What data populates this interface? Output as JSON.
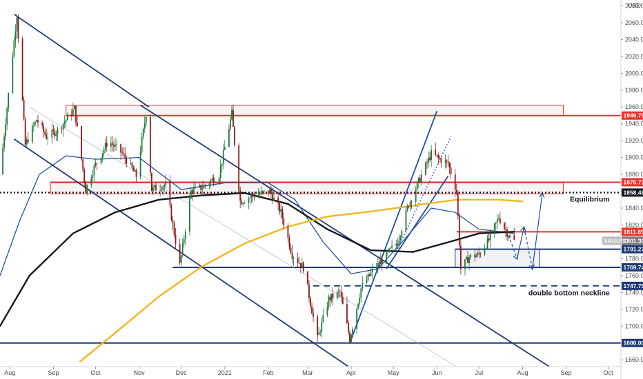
{
  "chart_data": {
    "type": "candlestick",
    "symbol": "XAUUSD",
    "currency": "USD",
    "y_range": [
      1652,
      2082
    ],
    "y_ticks": [
      1660,
      1680,
      1700,
      1720,
      1740,
      1760,
      1780,
      1800,
      1820,
      1840,
      1860,
      1880,
      1900,
      1920,
      1940,
      1960,
      1980,
      2000,
      2020,
      2040,
      2060,
      2080
    ],
    "x_range": [
      "2020-07-25",
      "2021-10-10"
    ],
    "x_ticks": [
      {
        "label": "Aug",
        "date": "2020-08-01"
      },
      {
        "label": "Sep",
        "date": "2020-09-01"
      },
      {
        "label": "Oct",
        "date": "2020-10-01"
      },
      {
        "label": "Nov",
        "date": "2020-11-01"
      },
      {
        "label": "Dec",
        "date": "2020-12-01"
      },
      {
        "label": "2021",
        "date": "2021-01-01"
      },
      {
        "label": "Feb",
        "date": "2021-02-01"
      },
      {
        "label": "Mar",
        "date": "2021-03-01"
      },
      {
        "label": "Apr",
        "date": "2021-04-01"
      },
      {
        "label": "May",
        "date": "2021-05-01"
      },
      {
        "label": "Jun",
        "date": "2021-06-01"
      },
      {
        "label": "Jul",
        "date": "2021-07-01"
      },
      {
        "label": "Aug",
        "date": "2021-08-01"
      },
      {
        "label": "Sep",
        "date": "2021-09-01"
      },
      {
        "label": "Oct",
        "date": "2021-10-01"
      }
    ],
    "close_path": [
      [
        "2020-07-25",
        1880
      ],
      [
        "2020-07-31",
        1975
      ],
      [
        "2020-08-06",
        2070
      ],
      [
        "2020-08-12",
        1915
      ],
      [
        "2020-08-20",
        1945
      ],
      [
        "2020-08-27",
        1925
      ],
      [
        "2020-09-04",
        1932
      ],
      [
        "2020-09-16",
        1958
      ],
      [
        "2020-09-24",
        1862
      ],
      [
        "2020-09-30",
        1888
      ],
      [
        "2020-10-10",
        1920
      ],
      [
        "2020-10-20",
        1905
      ],
      [
        "2020-10-30",
        1878
      ],
      [
        "2020-11-06",
        1952
      ],
      [
        "2020-11-10",
        1862
      ],
      [
        "2020-11-20",
        1868
      ],
      [
        "2020-11-30",
        1772
      ],
      [
        "2020-12-08",
        1860
      ],
      [
        "2020-12-16",
        1865
      ],
      [
        "2020-12-28",
        1880
      ],
      [
        "2021-01-06",
        1952
      ],
      [
        "2021-01-12",
        1848
      ],
      [
        "2021-01-22",
        1855
      ],
      [
        "2021-02-02",
        1860
      ],
      [
        "2021-02-10",
        1835
      ],
      [
        "2021-02-18",
        1785
      ],
      [
        "2021-02-26",
        1770
      ],
      [
        "2021-03-08",
        1685
      ],
      [
        "2021-03-16",
        1732
      ],
      [
        "2021-03-24",
        1740
      ],
      [
        "2021-03-31",
        1685
      ],
      [
        "2021-04-08",
        1745
      ],
      [
        "2021-04-16",
        1765
      ],
      [
        "2021-04-24",
        1780
      ],
      [
        "2021-05-04",
        1800
      ],
      [
        "2021-05-12",
        1845
      ],
      [
        "2021-05-20",
        1875
      ],
      [
        "2021-05-28",
        1905
      ],
      [
        "2021-06-03",
        1898
      ],
      [
        "2021-06-09",
        1893
      ],
      [
        "2021-06-15",
        1860
      ],
      [
        "2021-06-18",
        1768
      ],
      [
        "2021-06-24",
        1782
      ],
      [
        "2021-07-01",
        1785
      ],
      [
        "2021-07-08",
        1802
      ],
      [
        "2021-07-15",
        1829
      ],
      [
        "2021-07-22",
        1808
      ],
      [
        "2021-07-26",
        1801
      ]
    ],
    "moving_averages": [
      {
        "role": "blue",
        "color": "#1f4fa3",
        "points": [
          [
            "2020-07-25",
            1760
          ],
          [
            "2020-08-08",
            1825
          ],
          [
            "2020-08-22",
            1880
          ],
          [
            "2020-09-10",
            1902
          ],
          [
            "2020-10-01",
            1898
          ],
          [
            "2020-11-01",
            1900
          ],
          [
            "2020-12-01",
            1862
          ],
          [
            "2021-01-01",
            1870
          ],
          [
            "2021-02-01",
            1870
          ],
          [
            "2021-02-20",
            1850
          ],
          [
            "2021-03-12",
            1800
          ],
          [
            "2021-04-01",
            1762
          ],
          [
            "2021-04-20",
            1768
          ],
          [
            "2021-05-10",
            1805
          ],
          [
            "2021-05-28",
            1840
          ],
          [
            "2021-06-14",
            1835
          ],
          [
            "2021-07-01",
            1815
          ],
          [
            "2021-07-26",
            1810
          ]
        ]
      },
      {
        "role": "black",
        "color": "#131722",
        "points": [
          [
            "2020-07-25",
            1700
          ],
          [
            "2020-08-15",
            1760
          ],
          [
            "2020-09-15",
            1810
          ],
          [
            "2020-10-15",
            1835
          ],
          [
            "2020-11-15",
            1850
          ],
          [
            "2020-12-15",
            1855
          ],
          [
            "2021-01-15",
            1858
          ],
          [
            "2021-02-15",
            1845
          ],
          [
            "2021-03-15",
            1815
          ],
          [
            "2021-04-15",
            1790
          ],
          [
            "2021-05-15",
            1788
          ],
          [
            "2021-06-10",
            1800
          ],
          [
            "2021-07-01",
            1810
          ],
          [
            "2021-07-26",
            1812
          ]
        ]
      },
      {
        "role": "orange",
        "color": "#f2b51f",
        "points": [
          [
            "2020-09-20",
            1658
          ],
          [
            "2020-10-15",
            1692
          ],
          [
            "2020-11-15",
            1735
          ],
          [
            "2020-12-15",
            1770
          ],
          [
            "2021-01-15",
            1798
          ],
          [
            "2021-02-15",
            1818
          ],
          [
            "2021-03-15",
            1830
          ],
          [
            "2021-04-15",
            1836
          ],
          [
            "2021-05-15",
            1843
          ],
          [
            "2021-06-15",
            1850
          ],
          [
            "2021-07-15",
            1850
          ],
          [
            "2021-08-01",
            1848
          ]
        ]
      }
    ],
    "channels": [
      {
        "color": "#1c3a73",
        "upper": [
          [
            "2020-08-05",
            2067
          ],
          [
            "2021-03-20",
            1660
          ]
        ],
        "lower": [
          [
            "2020-08-05",
            1922
          ],
          [
            "2021-03-20",
            1660
          ]
        ],
        "lower_ext": [
          [
            "2020-07-28",
            1892
          ],
          [
            "2021-03-15",
            1652
          ]
        ],
        "upper_ext": [
          [
            "2020-07-28",
            2070
          ],
          [
            "2021-08-20",
            1652
          ]
        ]
      },
      {
        "color": "#1f4fa3",
        "upper": [
          [
            "2021-05-18",
            1912
          ],
          [
            "2021-06-01",
            1956
          ]
        ],
        "lower": [
          [
            "2021-03-31",
            1680
          ],
          [
            "2021-06-06",
            1878
          ]
        ]
      }
    ],
    "lines": [
      {
        "points": [
          [
            "2020-08-04",
            2070
          ],
          [
            "2020-11-08",
            1960
          ]
        ],
        "color": "#1c3a73"
      },
      {
        "points": [
          [
            "2020-08-04",
            1922
          ],
          [
            "2021-03-30",
            1652
          ]
        ],
        "color": "#1c3a73"
      },
      {
        "points": [
          [
            "2020-11-02",
            1962
          ],
          [
            "2021-08-20",
            1652
          ]
        ],
        "color": "#1c3a73"
      },
      {
        "points": [
          [
            "2021-03-31",
            1680
          ],
          [
            "2021-06-01",
            1955
          ]
        ],
        "color": "#1f4fa3"
      },
      {
        "points": [
          [
            "2021-04-26",
            1768
          ],
          [
            "2021-06-09",
            1878
          ]
        ],
        "color": "#1f4fa3"
      },
      {
        "points": [
          [
            "2020-08-15",
            1960
          ],
          [
            "2021-06-15",
            1652
          ]
        ],
        "color": "#a0a8b8",
        "width": 0.6
      },
      {
        "points": [
          [
            "2021-05-02",
            1785
          ],
          [
            "2021-06-11",
            1925
          ]
        ],
        "color": "#1f4fa3",
        "dashed": true
      }
    ],
    "zones": [
      {
        "x": [
          "2020-09-10",
          "2021-08-30"
        ],
        "y": [
          1950,
          1962
        ],
        "border": "#e8322b",
        "fill": "#f4f4f4"
      },
      {
        "x": [
          "2020-08-30",
          "2021-08-30"
        ],
        "y": [
          1857,
          1870
        ],
        "border": "#e8322b",
        "fill": "#f4f4f4"
      },
      {
        "x": [
          "2021-06-14",
          "2021-08-13"
        ],
        "y": [
          1770,
          1791
        ],
        "border": "#1c3a73",
        "fill": "#f0f2f7"
      }
    ],
    "levels": [
      {
        "value": 1949.79,
        "label": "1949.79",
        "color": "#e8322b",
        "style": "solid",
        "from": "2020-09-10"
      },
      {
        "value": 1870.71,
        "label": "1870.71",
        "color": "#e8322b",
        "style": "solid",
        "from": "2020-08-30"
      },
      {
        "value": 1858.48,
        "label": "1858.48",
        "color": "#131722",
        "style": "dotted",
        "from": "2020-07-25"
      },
      {
        "value": 1811.89,
        "label": "1811.89",
        "color": "#e8322b",
        "style": "solid",
        "from": "2021-06-15"
      },
      {
        "value": 1791.27,
        "label": "1791.27",
        "color": "#1c3a73",
        "style": "solid",
        "from": "2021-06-14"
      },
      {
        "value": 1769.74,
        "label": "1769.74",
        "color": "#1c3a73",
        "style": "solid",
        "from": "2020-11-25"
      },
      {
        "value": 1747.75,
        "label": "1747.75",
        "color": "#1c3a73",
        "style": "dashed",
        "from": "2021-03-05"
      },
      {
        "value": 1680.0,
        "label": "1680.00",
        "color": "#1c3a73",
        "style": "solid",
        "from": "2020-07-25"
      }
    ],
    "current_price": {
      "value": 1801.3,
      "label": "1801.30",
      "symbol": "XAUUSD",
      "color": "#7d7d7d"
    },
    "annotations": [
      {
        "text": "Equilibrium",
        "anchor": "right",
        "date": "2021-10-02",
        "value": 1851
      },
      {
        "text": "double bottom neckline",
        "anchor": "right",
        "date": "2021-10-02",
        "value": 1740
      }
    ],
    "projection_arrows": [
      {
        "from": [
          "2021-07-22",
          1808
        ],
        "to": [
          "2021-07-28",
          1780
        ]
      },
      {
        "from": [
          "2021-07-28",
          1780
        ],
        "to": [
          "2021-08-02",
          1817
        ]
      },
      {
        "from": [
          "2021-08-02",
          1817
        ],
        "to": [
          "2021-08-08",
          1768
        ]
      },
      {
        "from": [
          "2021-08-08",
          1768
        ],
        "to": [
          "2021-08-15",
          1857
        ]
      }
    ]
  }
}
